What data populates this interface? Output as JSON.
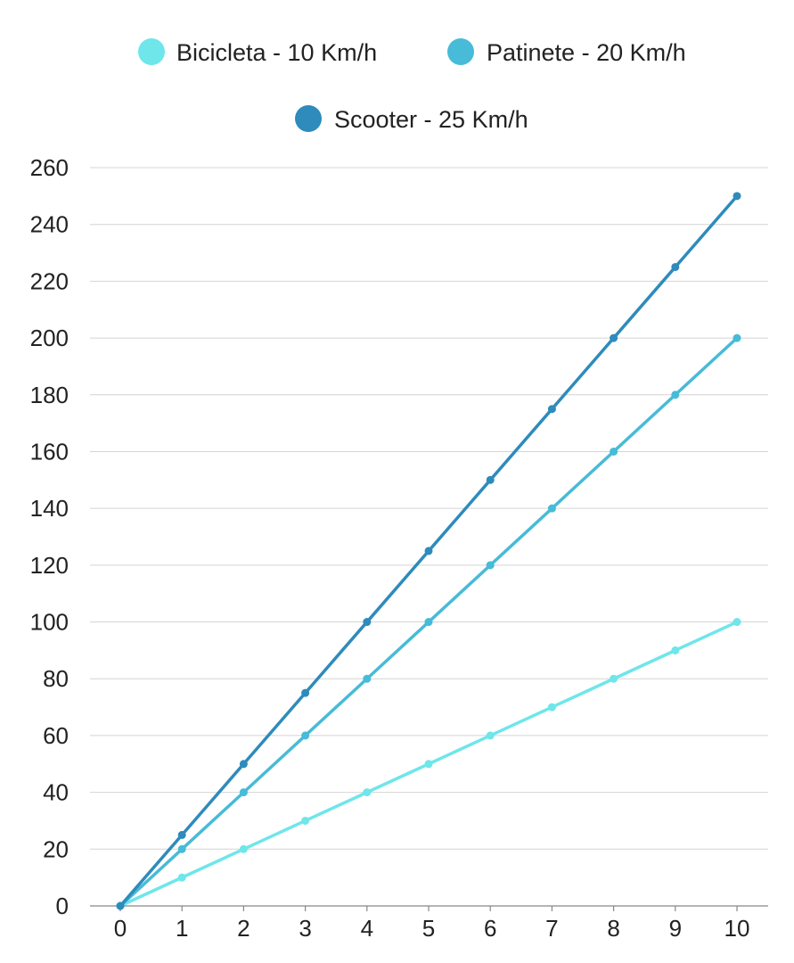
{
  "chart_data": {
    "type": "line",
    "title": "",
    "xlabel": "",
    "ylabel": "",
    "x": [
      0,
      1,
      2,
      3,
      4,
      5,
      6,
      7,
      8,
      9,
      10
    ],
    "xlim": [
      0,
      10
    ],
    "ylim": [
      0,
      260
    ],
    "y_ticks": [
      0,
      20,
      40,
      60,
      80,
      100,
      120,
      140,
      160,
      180,
      200,
      220,
      240,
      260
    ],
    "grid": true,
    "legend_position": "top-center",
    "series": [
      {
        "name": "Bicicleta - 10 Km/h",
        "color": "#6ee6ea",
        "values": [
          0,
          10,
          20,
          30,
          40,
          50,
          60,
          70,
          80,
          90,
          100
        ]
      },
      {
        "name": "Patinete - 20 Km/h",
        "color": "#47bbd7",
        "values": [
          0,
          20,
          40,
          60,
          80,
          100,
          120,
          140,
          160,
          180,
          200
        ]
      },
      {
        "name": "Scooter - 25 Km/h",
        "color": "#2e8bbc",
        "values": [
          0,
          25,
          50,
          75,
          100,
          125,
          150,
          175,
          200,
          225,
          250
        ]
      }
    ]
  }
}
